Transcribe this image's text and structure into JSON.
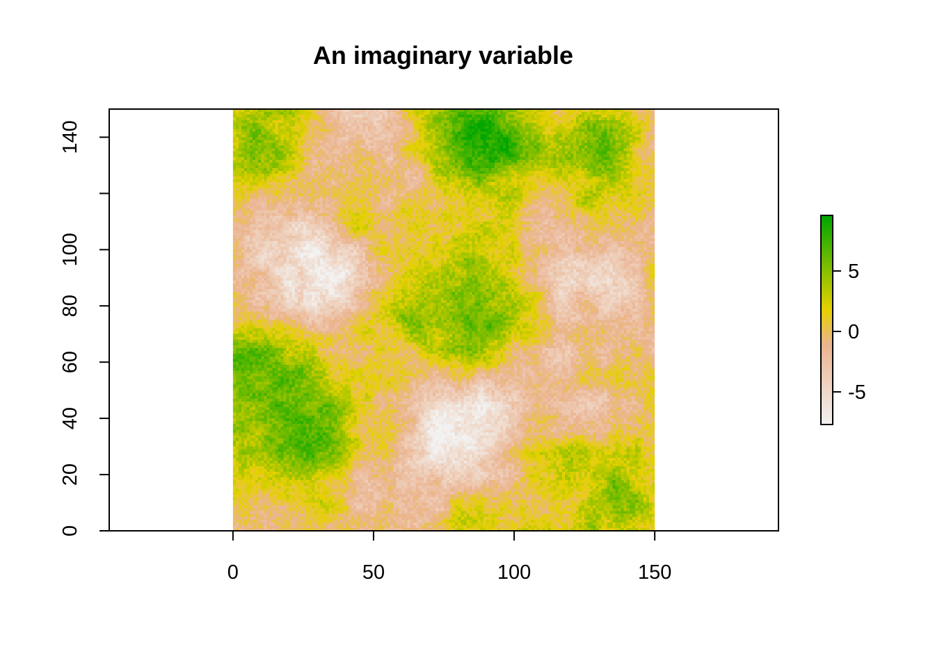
{
  "chart_data": {
    "type": "heatmap",
    "title": "An imaginary variable",
    "xlabel": "",
    "ylabel": "",
    "xlim": [
      -44,
      194
    ],
    "ylim": [
      0,
      150
    ],
    "raster_extent": {
      "x": [
        0,
        150
      ],
      "y": [
        0,
        150
      ]
    },
    "x_ticks": [
      0,
      50,
      100,
      150
    ],
    "y_ticks": [
      0,
      20,
      40,
      60,
      80,
      100,
      120,
      140
    ],
    "y_tick_labels": [
      "0",
      "20",
      "40",
      "60",
      "80",
      "100",
      "",
      "140"
    ],
    "value_range": [
      -7.7,
      9.6
    ],
    "colorbar": {
      "ticks": [
        -5,
        0,
        5
      ],
      "labels": [
        "-5",
        "0",
        "5"
      ],
      "colors": [
        "#f2f2f2",
        "#ebb490",
        "#e6d100",
        "#00a600"
      ]
    },
    "features": [
      {
        "kind": "high",
        "x": 25,
        "y": 35,
        "value": 8.5,
        "spread": 16
      },
      {
        "kind": "high",
        "x": 88,
        "y": 140,
        "value": 8.5,
        "spread": 13
      },
      {
        "kind": "high",
        "x": 85,
        "y": 85,
        "value": 7.0,
        "spread": 16
      },
      {
        "kind": "high",
        "x": 10,
        "y": 135,
        "value": 5.0,
        "spread": 8
      },
      {
        "kind": "high",
        "x": 130,
        "y": 135,
        "value": 5.0,
        "spread": 9
      },
      {
        "kind": "high",
        "x": 140,
        "y": 5,
        "value": 4.0,
        "spread": 10
      },
      {
        "kind": "high",
        "x": 5,
        "y": 60,
        "value": 4.0,
        "spread": 10
      },
      {
        "kind": "high",
        "x": 55,
        "y": 80,
        "value": 4.5,
        "spread": 10
      },
      {
        "kind": "low",
        "x": 80,
        "y": 35,
        "value": -7.7,
        "spread": 12
      },
      {
        "kind": "low",
        "x": 30,
        "y": 92,
        "value": -6.5,
        "spread": 15
      },
      {
        "kind": "low",
        "x": 130,
        "y": 90,
        "value": -6.0,
        "spread": 14
      },
      {
        "kind": "low",
        "x": 48,
        "y": 20,
        "value": -6.0,
        "spread": 10
      },
      {
        "kind": "low",
        "x": 110,
        "y": 50,
        "value": -3.0,
        "spread": 14
      },
      {
        "kind": "low",
        "x": 45,
        "y": 145,
        "value": -3.5,
        "spread": 12
      }
    ]
  }
}
